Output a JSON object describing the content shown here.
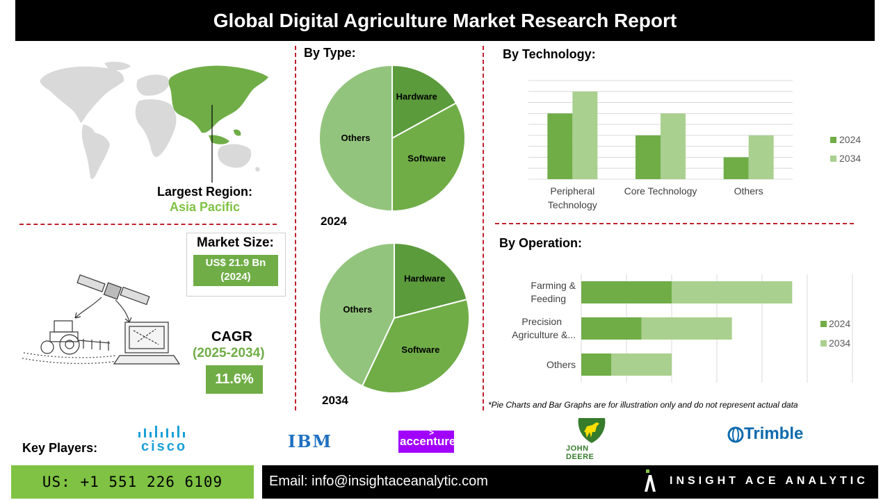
{
  "title": "Global Digital Agriculture Market Research Report",
  "region": {
    "label": "Largest Region:",
    "value": "Asia Pacific"
  },
  "market_size": {
    "label": "Market Size:",
    "value_line1": "US$ 21.9 Bn",
    "value_line2": "(2024)"
  },
  "cagr": {
    "label": "CAGR",
    "period": "(2025-2034)",
    "value": "11.6%"
  },
  "by_type": {
    "heading": "By Type:",
    "year_2024": "2024",
    "year_2034": "2034"
  },
  "by_technology": {
    "heading": "By  Technology:"
  },
  "by_operation": {
    "heading": "By Operation:"
  },
  "footnote": "*Pie Charts and Bar Graphs are for illustration only and do not represent actual data",
  "key_players": {
    "label": "Key Players:",
    "players": [
      "cisco",
      "IBM",
      "accenture",
      "JOHN DEERE",
      "Trimble"
    ]
  },
  "footer": {
    "phone": "US: +1 551 226 6109",
    "email": "Email: info@insightaceanalytic.com",
    "brand": "INSIGHT ACE ANALYTIC"
  },
  "colors": {
    "dark_green": "#5b9b3c",
    "mid_green": "#70ad47",
    "light_green": "#93c47d",
    "pale_green": "#a9d08e",
    "accent_red": "#c0202a",
    "accenture_purple": "#a100ff"
  },
  "chart_data": [
    {
      "type": "pie",
      "label": "2024",
      "categories": [
        "Hardware",
        "Software",
        "Others"
      ],
      "values": [
        17,
        33,
        50
      ]
    },
    {
      "type": "pie",
      "label": "2034",
      "categories": [
        "Hardware",
        "Software",
        "Others"
      ],
      "values": [
        21,
        36,
        43
      ]
    },
    {
      "type": "bar",
      "orientation": "vertical",
      "categories": [
        "Peripheral Technology",
        "Core Technology",
        "Others"
      ],
      "series": [
        {
          "name": "2024",
          "values": [
            6,
            4,
            2
          ]
        },
        {
          "name": "2034",
          "values": [
            8,
            6,
            4
          ]
        }
      ],
      "ylim": [
        0,
        9
      ],
      "grid": true,
      "legend": "right"
    },
    {
      "type": "bar",
      "orientation": "horizontal",
      "stacked": true,
      "categories": [
        "Farming & Feeding",
        "Precision Agriculture &...",
        "Others"
      ],
      "series": [
        {
          "name": "2024",
          "values": [
            3,
            2,
            1
          ]
        },
        {
          "name": "2034",
          "values": [
            4,
            3,
            2
          ]
        }
      ],
      "xlim": [
        0,
        9
      ],
      "grid": true,
      "legend": "right"
    }
  ]
}
